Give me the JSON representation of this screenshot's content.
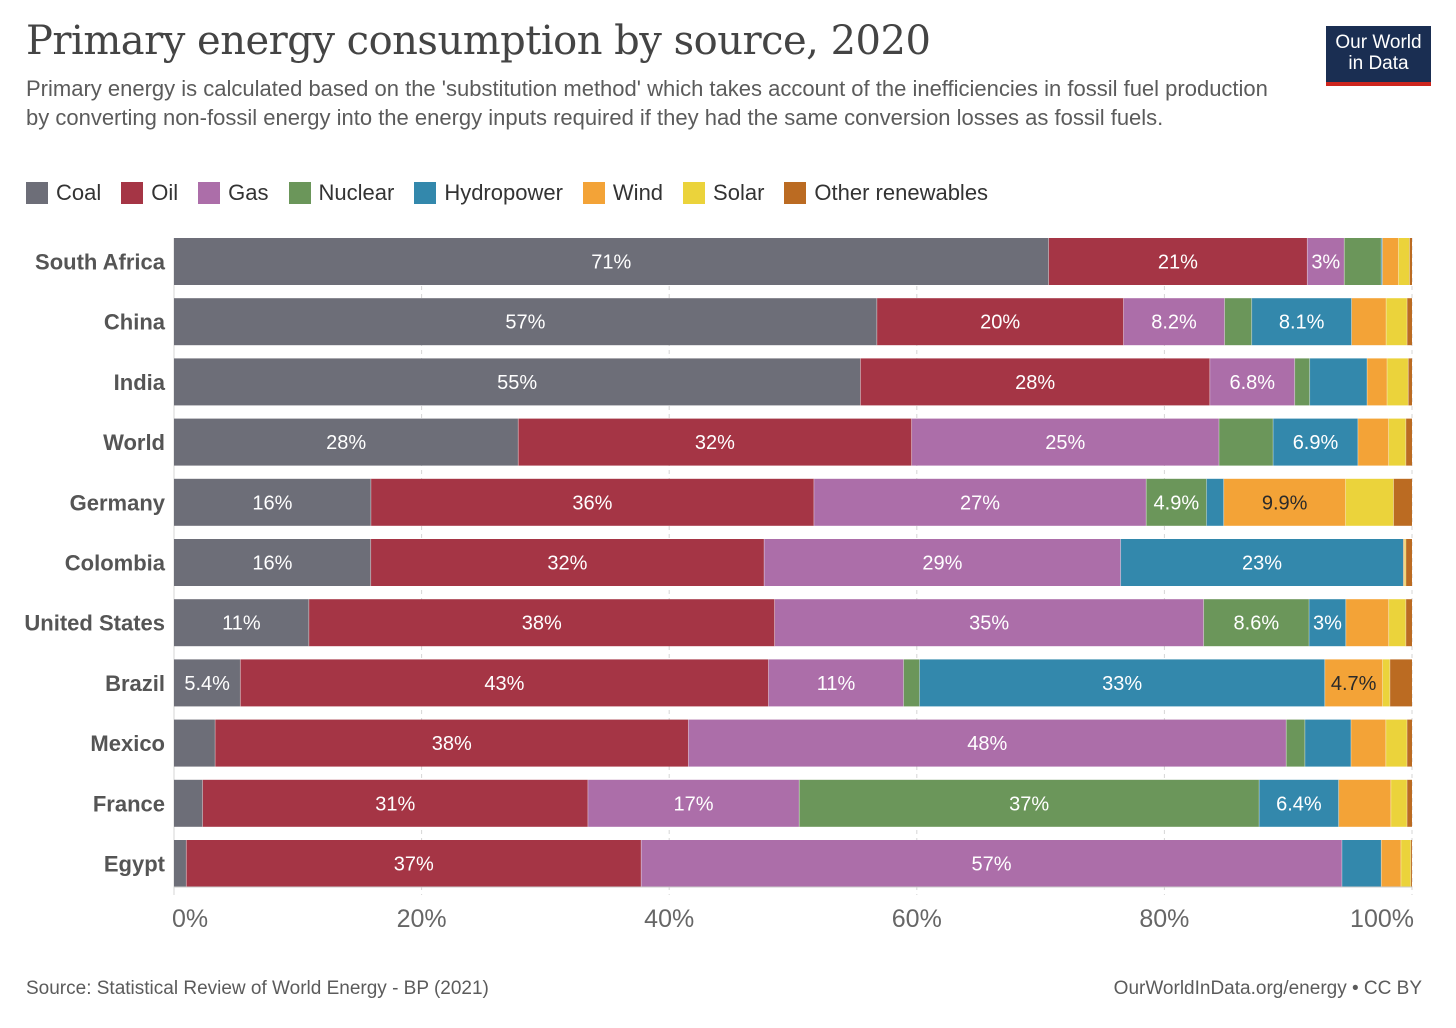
{
  "header": {
    "title": "Primary energy consumption by source, 2020",
    "subtitle": "Primary energy is calculated based on the 'substitution method' which takes account of the inefficiencies in fossil fuel production by converting non-fossil energy into the energy inputs required if they had the same conversion losses as fossil fuels.",
    "logo_line1": "Our World",
    "logo_line2": "in Data"
  },
  "footer": {
    "source": "Source: Statistical Review of World Energy - BP (2021)",
    "credit": "OurWorldInData.org/energy • CC BY"
  },
  "chart_data": {
    "type": "bar",
    "orientation": "horizontal",
    "stacked": true,
    "normalized": true,
    "title": "Primary energy consumption by source, 2020",
    "xlim": [
      0,
      100
    ],
    "xticks": [
      "0%",
      "20%",
      "40%",
      "60%",
      "80%",
      "100%"
    ],
    "grid": true,
    "categories": [
      "South Africa",
      "China",
      "India",
      "World",
      "Germany",
      "Colombia",
      "United States",
      "Brazil",
      "Mexico",
      "France",
      "Egypt"
    ],
    "series": [
      {
        "name": "Coal",
        "color": "#6d6e78",
        "label_color": "#ffffff",
        "values": [
          71,
          57,
          55,
          28,
          16,
          16,
          11,
          5.4,
          3.3,
          2.3,
          1.0
        ],
        "labels": [
          "71%",
          "57%",
          "55%",
          "28%",
          "16%",
          "16%",
          "11%",
          "5.4%",
          "",
          "",
          ""
        ]
      },
      {
        "name": "Oil",
        "color": "#a53545",
        "label_color": "#ffffff",
        "values": [
          21,
          20,
          28,
          32,
          36,
          32,
          38,
          43,
          38,
          31,
          37
        ],
        "labels": [
          "21%",
          "20%",
          "28%",
          "32%",
          "36%",
          "32%",
          "38%",
          "43%",
          "38%",
          "31%",
          "37%"
        ]
      },
      {
        "name": "Gas",
        "color": "#ac6ea9",
        "label_color": "#ffffff",
        "values": [
          3,
          8.2,
          6.8,
          25,
          27,
          29,
          35,
          11,
          48,
          17,
          57
        ],
        "labels": [
          "3%",
          "8.2%",
          "6.8%",
          "25%",
          "27%",
          "29%",
          "35%",
          "11%",
          "48%",
          "17%",
          "57%"
        ]
      },
      {
        "name": "Nuclear",
        "color": "#6b965a",
        "label_color": "#ffffff",
        "values": [
          3,
          2.2,
          1.2,
          4.4,
          4.9,
          0,
          8.6,
          1.3,
          1.5,
          37,
          0
        ],
        "labels": [
          "",
          "",
          "",
          "",
          "4.9%",
          "",
          "8.6%",
          "",
          "",
          "37%",
          ""
        ]
      },
      {
        "name": "Hydropower",
        "color": "#3388ac",
        "label_color": "#ffffff",
        "values": [
          0.1,
          8.1,
          4.6,
          6.9,
          1.4,
          23,
          3,
          33,
          3.7,
          6.4,
          3.2
        ],
        "labels": [
          "",
          "8.1%",
          "",
          "6.9%",
          "",
          "23%",
          "3%",
          "33%",
          "",
          "6.4%",
          ""
        ]
      },
      {
        "name": "Wind",
        "color": "#f3a337",
        "label_color": "#2a2a2a",
        "values": [
          1.3,
          2.8,
          1.6,
          2.5,
          9.9,
          0.1,
          3.5,
          4.7,
          2.8,
          4.2,
          1.6
        ],
        "labels": [
          "",
          "",
          "",
          "",
          "9.9%",
          "",
          "",
          "4.7%",
          "",
          "",
          ""
        ]
      },
      {
        "name": "Solar",
        "color": "#ebd33b",
        "label_color": "#2a2a2a",
        "values": [
          0.9,
          1.7,
          1.7,
          1.4,
          3.9,
          0.1,
          1.4,
          0.6,
          1.7,
          1.3,
          0.8
        ],
        "labels": [
          "",
          "",
          "",
          "",
          "",
          "",
          "",
          "",
          "",
          "",
          ""
        ]
      },
      {
        "name": "Other renewables",
        "color": "#bb6b22",
        "label_color": "#ffffff",
        "values": [
          0.2,
          0.4,
          0.3,
          0.5,
          1.5,
          0.5,
          0.5,
          1.8,
          0.4,
          0.4,
          0.1
        ],
        "labels": [
          "",
          "",
          "",
          "",
          "",
          "",
          "",
          "",
          "",
          "",
          ""
        ]
      }
    ]
  }
}
